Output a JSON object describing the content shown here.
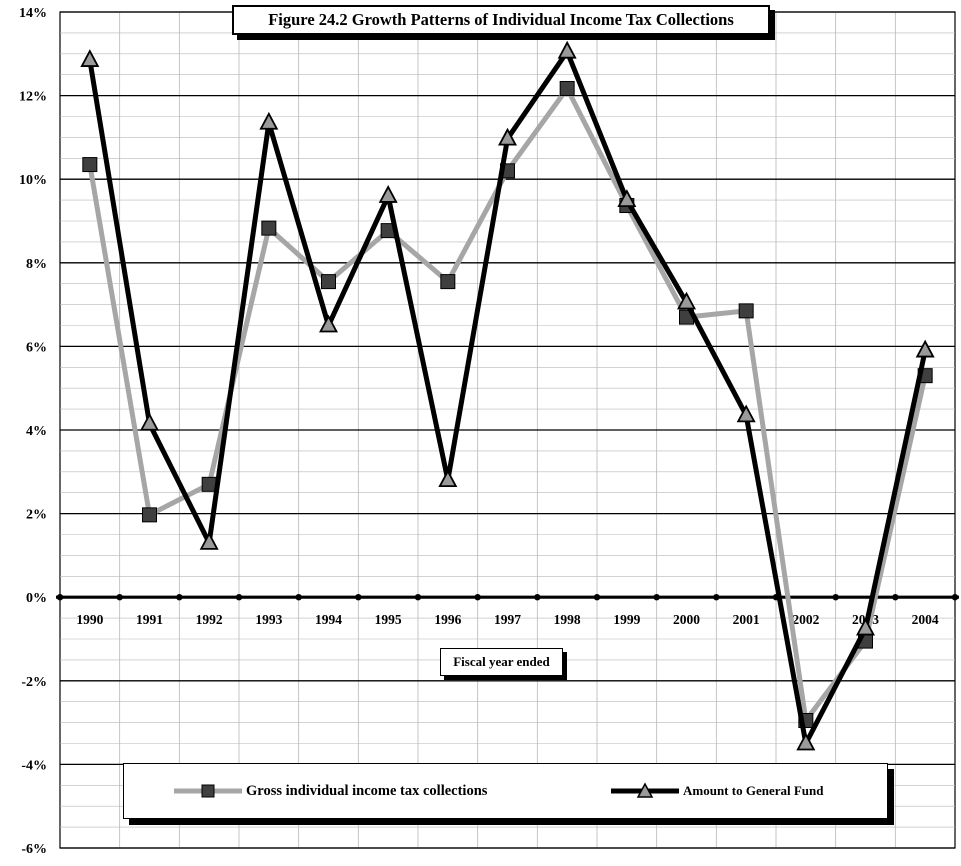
{
  "chart_data": {
    "type": "line",
    "title": "Figure 24.2  Growth Patterns of Individual Income Tax Collections",
    "xlabel": "Fiscal year ended",
    "ylabel": "",
    "categories": [
      "1990",
      "1991",
      "1992",
      "1993",
      "1994",
      "1995",
      "1996",
      "1997",
      "1998",
      "1999",
      "2000",
      "2001",
      "2002",
      "2003",
      "2004"
    ],
    "y_tick_labels": [
      "14%",
      "12%",
      "10%",
      "8%",
      "6%",
      "4%",
      "2%",
      "0%",
      "-2%",
      "-4%",
      "-6%"
    ],
    "ylim": [
      -6,
      14
    ],
    "grid": true,
    "legend_position": "bottom",
    "series": [
      {
        "name": "Gross individual income tax collections",
        "color": "#a6a6a6",
        "marker": "square",
        "values": [
          10.35,
          1.97,
          2.7,
          8.83,
          7.55,
          8.77,
          7.55,
          10.2,
          12.17,
          9.37,
          6.7,
          6.85,
          -2.95,
          -1.05,
          5.3
        ]
      },
      {
        "name": "Amount to General Fund",
        "color": "#000000",
        "marker": "triangle",
        "values": [
          12.85,
          4.15,
          1.3,
          11.35,
          6.5,
          9.6,
          2.8,
          10.97,
          13.05,
          9.5,
          7.05,
          4.35,
          -3.5,
          -0.75,
          5.9
        ]
      }
    ]
  }
}
